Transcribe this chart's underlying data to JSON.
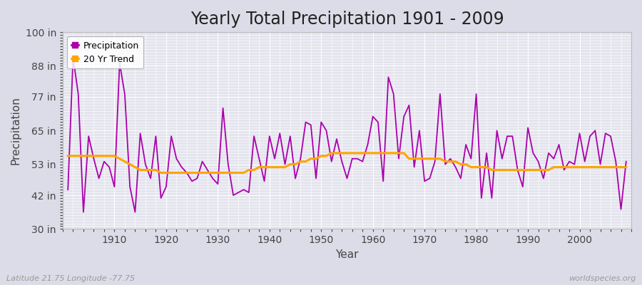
{
  "title": "Yearly Total Precipitation 1901 - 2009",
  "xlabel": "Year",
  "ylabel": "Precipitation",
  "subtitle": "Latitude 21.75 Longitude -77.75",
  "watermark": "worldspecies.org",
  "ylim": [
    30,
    100
  ],
  "yticks": [
    30,
    42,
    53,
    65,
    77,
    88,
    100
  ],
  "ytick_labels": [
    "30 in",
    "42 in",
    "53 in",
    "65 in",
    "77 in",
    "88 in",
    "100 in"
  ],
  "xticks": [
    1910,
    1920,
    1930,
    1940,
    1950,
    1960,
    1970,
    1980,
    1990,
    2000
  ],
  "years": [
    1901,
    1902,
    1903,
    1904,
    1905,
    1906,
    1907,
    1908,
    1909,
    1910,
    1911,
    1912,
    1913,
    1914,
    1915,
    1916,
    1917,
    1918,
    1919,
    1920,
    1921,
    1922,
    1923,
    1924,
    1925,
    1926,
    1927,
    1928,
    1929,
    1930,
    1931,
    1932,
    1933,
    1934,
    1935,
    1936,
    1937,
    1938,
    1939,
    1940,
    1941,
    1942,
    1943,
    1944,
    1945,
    1946,
    1947,
    1948,
    1949,
    1950,
    1951,
    1952,
    1953,
    1954,
    1955,
    1956,
    1957,
    1958,
    1959,
    1960,
    1961,
    1962,
    1963,
    1964,
    1965,
    1966,
    1967,
    1968,
    1969,
    1970,
    1971,
    1972,
    1973,
    1974,
    1975,
    1976,
    1977,
    1978,
    1979,
    1980,
    1981,
    1982,
    1983,
    1984,
    1985,
    1986,
    1987,
    1988,
    1989,
    1990,
    1991,
    1992,
    1993,
    1994,
    1995,
    1996,
    1997,
    1998,
    1999,
    2000,
    2001,
    2002,
    2003,
    2004,
    2005,
    2006,
    2007,
    2008,
    2009
  ],
  "precip": [
    44,
    91,
    78,
    36,
    63,
    55,
    48,
    54,
    52,
    45,
    89,
    78,
    45,
    36,
    64,
    53,
    48,
    63,
    41,
    45,
    63,
    55,
    52,
    50,
    47,
    48,
    54,
    51,
    48,
    46,
    73,
    53,
    42,
    43,
    44,
    43,
    63,
    55,
    47,
    63,
    55,
    64,
    53,
    63,
    48,
    55,
    68,
    67,
    48,
    68,
    65,
    54,
    62,
    54,
    48,
    55,
    55,
    54,
    60,
    70,
    68,
    47,
    84,
    78,
    55,
    70,
    74,
    52,
    65,
    47,
    48,
    54,
    78,
    53,
    55,
    52,
    48,
    60,
    55,
    78,
    41,
    57,
    41,
    65,
    55,
    63,
    63,
    51,
    45,
    66,
    57,
    54,
    48,
    57,
    55,
    60,
    51,
    54,
    53,
    64,
    54,
    63,
    65,
    53,
    64,
    63,
    54,
    37,
    54
  ],
  "trend": [
    56,
    56,
    56,
    56,
    56,
    56,
    56,
    56,
    56,
    56,
    55,
    54,
    53,
    52,
    51,
    51,
    51,
    51,
    50,
    50,
    50,
    50,
    50,
    50,
    50,
    50,
    50,
    50,
    50,
    50,
    50,
    50,
    50,
    50,
    50,
    51,
    51,
    52,
    52,
    52,
    52,
    52,
    52,
    53,
    53,
    54,
    54,
    55,
    55,
    56,
    56,
    57,
    57,
    57,
    57,
    57,
    57,
    57,
    57,
    57,
    57,
    57,
    57,
    57,
    57,
    57,
    55,
    55,
    55,
    55,
    55,
    55,
    55,
    54,
    54,
    54,
    53,
    53,
    52,
    52,
    52,
    52,
    51,
    51,
    51,
    51,
    51,
    51,
    51,
    51,
    51,
    51,
    51,
    51,
    52,
    52,
    52,
    52,
    52,
    52,
    52,
    52,
    52,
    52,
    52,
    52,
    52,
    52,
    52
  ],
  "precip_color": "#AA00AA",
  "trend_color": "#FFA500",
  "bg_color": "#DCDCE8",
  "plot_bg_color": "#E4E4EE",
  "grid_color": "#FFFFFF",
  "title_fontsize": 17,
  "axis_label_fontsize": 11,
  "tick_fontsize": 10,
  "legend_fontsize": 9
}
